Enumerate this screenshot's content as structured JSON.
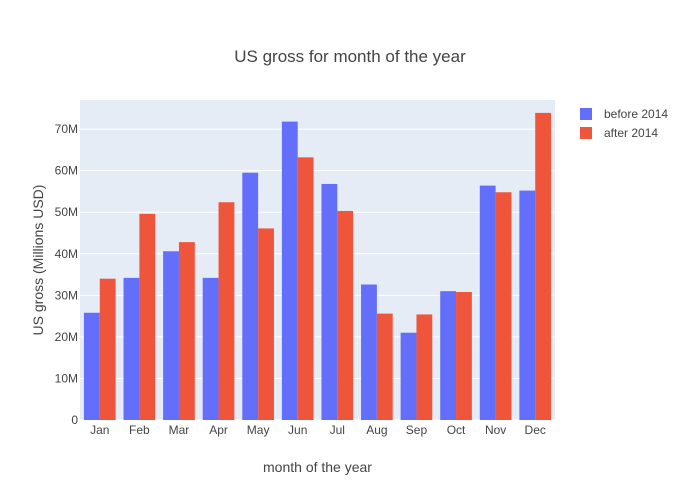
{
  "chart_data": {
    "type": "bar",
    "title": "US gross for month of the year",
    "xlabel": "month of the year",
    "ylabel": "US gross (Millions USD)",
    "categories": [
      "Jan",
      "Feb",
      "Mar",
      "Apr",
      "May",
      "Jun",
      "Jul",
      "Aug",
      "Sep",
      "Oct",
      "Nov",
      "Dec"
    ],
    "series": [
      {
        "name": "before 2014",
        "color": "#636efa",
        "values": [
          25.8,
          34.2,
          40.6,
          34.2,
          59.5,
          71.8,
          56.8,
          32.6,
          21.0,
          31.0,
          56.4,
          55.2
        ]
      },
      {
        "name": "after 2014",
        "color": "#ef553b",
        "values": [
          34.0,
          49.6,
          42.8,
          52.4,
          46.1,
          63.2,
          50.3,
          25.6,
          25.4,
          30.8,
          54.8,
          73.9
        ]
      }
    ],
    "ylim": [
      0,
      77
    ],
    "yticks": [
      0,
      10,
      20,
      30,
      40,
      50,
      60,
      70
    ],
    "ytick_labels": [
      "0",
      "10M",
      "20M",
      "30M",
      "40M",
      "50M",
      "60M",
      "70M"
    ],
    "grid": true,
    "plot_background": "#e5ecf6",
    "legend_position": "top-right"
  }
}
